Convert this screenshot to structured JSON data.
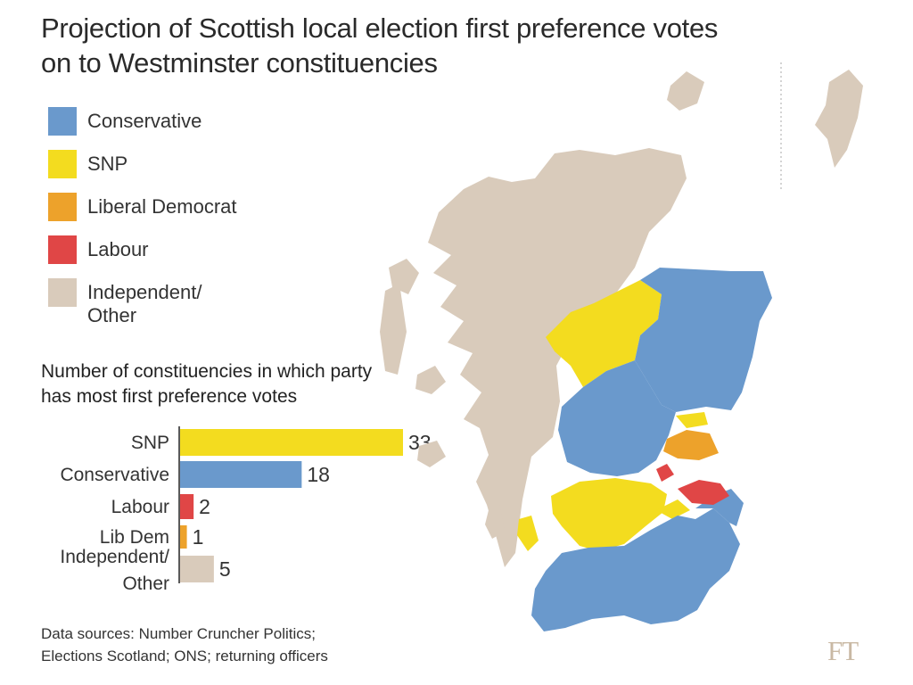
{
  "title": "Projection of Scottish local election first preference votes on to Westminster constituencies",
  "legend": [
    {
      "label": "Conservative",
      "color": "#6a99cc"
    },
    {
      "label": "SNP",
      "color": "#f3dc1f"
    },
    {
      "label": "Liberal Democrat",
      "color": "#eda22b"
    },
    {
      "label": "Labour",
      "color": "#e04646"
    },
    {
      "label": "Independent/\nOther",
      "color": "#d9cbbb"
    }
  ],
  "subtitle": "Number of constituencies in which party\nhas most first preference votes",
  "chart_data": {
    "type": "bar",
    "orientation": "horizontal",
    "categories": [
      "SNP",
      "Conservative",
      "Labour",
      "Lib Dem",
      "Independent/\nOther"
    ],
    "values": [
      33,
      18,
      2,
      1,
      5
    ],
    "colors": [
      "#f3dc1f",
      "#6a99cc",
      "#e04646",
      "#eda22b",
      "#d9cbbb"
    ],
    "xlim": [
      0,
      33
    ],
    "grid": false
  },
  "map": {
    "type": "choropleth",
    "regions_by_party": {
      "Conservative": "#6a99cc",
      "SNP": "#f3dc1f",
      "Liberal Democrat": "#eda22b",
      "Labour": "#e04646",
      "Independent/Other": "#d9cbbb"
    }
  },
  "source": "Data sources: Number Cruncher Politics;\nElections Scotland; ONS; returning officers",
  "brand": "FT"
}
